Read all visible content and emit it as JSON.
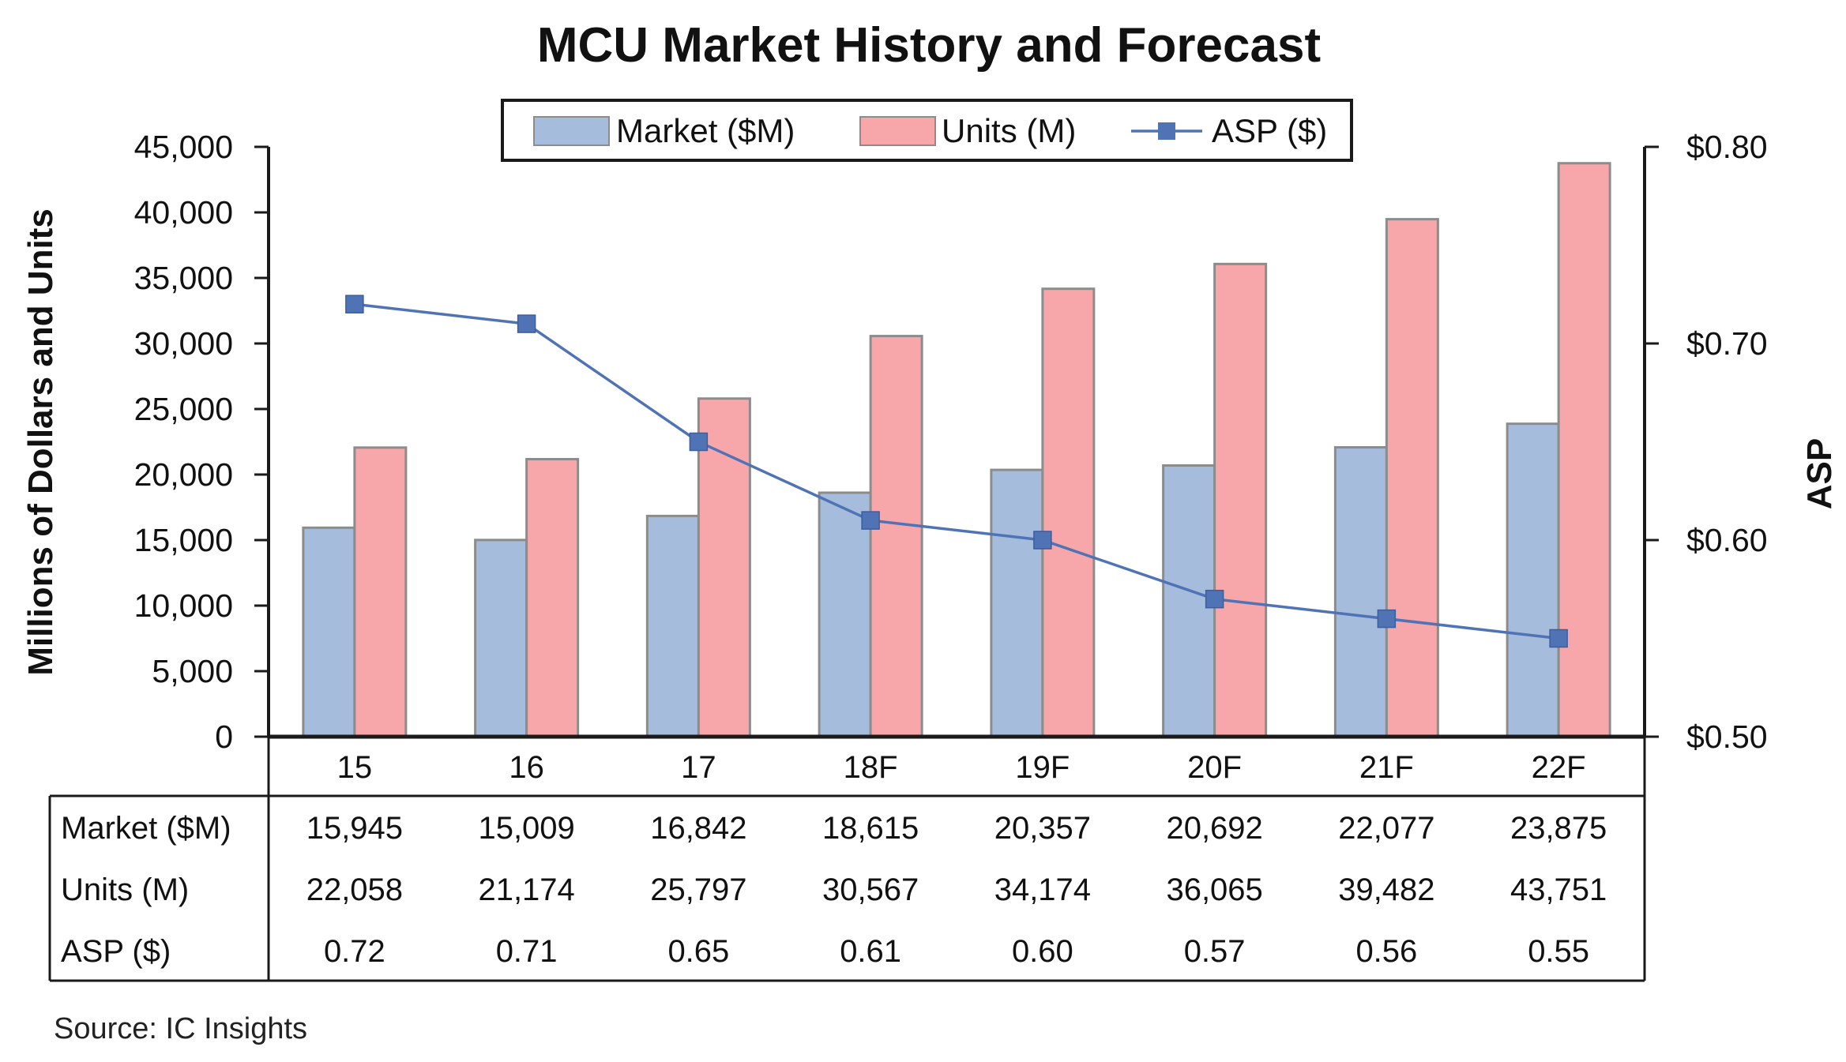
{
  "chart_data": {
    "type": "bar",
    "title": "MCU Market History and Forecast",
    "categories": [
      "15",
      "16",
      "17",
      "18F",
      "19F",
      "20F",
      "21F",
      "22F"
    ],
    "series": [
      {
        "name": "Market ($M)",
        "type": "bar",
        "axis": "left",
        "color": "#a6bcdc",
        "values": [
          15945,
          15009,
          16842,
          18615,
          20357,
          20692,
          22077,
          23875
        ]
      },
      {
        "name": "Units (M)",
        "type": "bar",
        "axis": "left",
        "color": "#f7a7aa",
        "values": [
          22058,
          21174,
          25797,
          30567,
          34174,
          36065,
          39482,
          43751
        ]
      },
      {
        "name": "ASP ($)",
        "type": "line",
        "axis": "right",
        "color": "#4f73b4",
        "values": [
          0.72,
          0.71,
          0.65,
          0.61,
          0.6,
          0.57,
          0.56,
          0.55
        ]
      }
    ],
    "ylabel": "Millions of Dollars and Units",
    "y2label": "ASP",
    "ylim": [
      0,
      45000
    ],
    "yticks": [
      "0",
      "5,000",
      "10,000",
      "15,000",
      "20,000",
      "25,000",
      "30,000",
      "35,000",
      "40,000",
      "45,000"
    ],
    "y2lim": [
      0.5,
      0.8
    ],
    "y2ticks": [
      "$0.50",
      "$0.60",
      "$0.70",
      "$0.80"
    ],
    "legend_position": "top-center",
    "grid": false,
    "table": {
      "row_labels": [
        "Market ($M)",
        "Units (M)",
        "ASP ($)"
      ],
      "rows": [
        [
          "15,945",
          "15,009",
          "16,842",
          "18,615",
          "20,357",
          "20,692",
          "22,077",
          "23,875"
        ],
        [
          "22,058",
          "21,174",
          "25,797",
          "30,567",
          "34,174",
          "36,065",
          "39,482",
          "43,751"
        ],
        [
          "0.72",
          "0.71",
          "0.65",
          "0.61",
          "0.60",
          "0.57",
          "0.56",
          "0.55"
        ]
      ]
    }
  },
  "source": "Source:  IC Insights"
}
